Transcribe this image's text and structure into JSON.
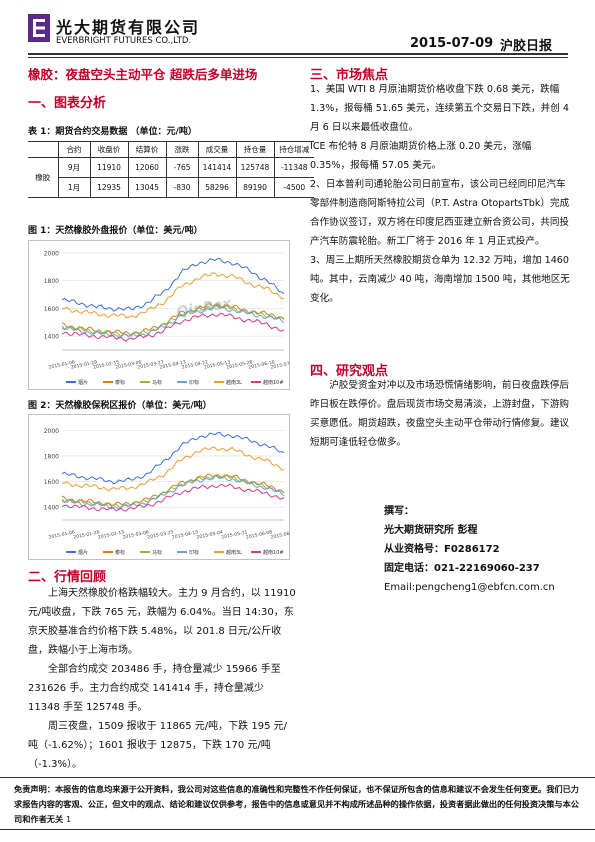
{
  "header": {
    "company_cn": "光大期货有限公司",
    "company_en": "EVERBRIGHT FUTURES CO.,LTD.",
    "date": "2015-07-09",
    "report_name": "沪胶日报"
  },
  "headline": "橡胶：夜盘空头主动平仓  超跌后多单进场",
  "sections": {
    "s1": "一、图表分析",
    "s2": "二、行情回顾",
    "s3": "三、市场焦点",
    "s4": "四、研究观点"
  },
  "table": {
    "caption": "表 1：期货合约交易数据  （单位：元/吨）",
    "headers": [
      "合约",
      "收盘价",
      "结算价",
      "涨跌",
      "成交量",
      "持仓量",
      "持仓增减"
    ],
    "product": "橡胶",
    "rows": [
      [
        "9月",
        "11910",
        "12060",
        "-765",
        "141414",
        "125748",
        "-11348"
      ],
      [
        "1月",
        "12935",
        "13045",
        "-830",
        "58296",
        "89190",
        "-4500"
      ]
    ]
  },
  "fig1": {
    "caption": "图 1：天然橡胶外盘报价（单位：美元/吨）",
    "watermark": "QinRex",
    "chart_data": {
      "type": "line",
      "yticks": [
        1400,
        1600,
        1800,
        2000
      ],
      "ylim": [
        1300,
        2050
      ],
      "xticks": [
        "2015-01-06",
        "2015-01-29",
        "2015-02-15",
        "2015-03-06",
        "2015-03-27",
        "2015-04-13",
        "2015-04-22",
        "2015-05-13",
        "2015-05-28",
        "2015-06-10",
        "2015-07-06"
      ],
      "series": [
        {
          "name": "烟片",
          "color": "#3b6fd6",
          "values": [
            1660,
            1640,
            1610,
            1600,
            1590,
            1640,
            1720,
            1860,
            1930,
            1950,
            1930,
            1870,
            1800,
            1700
          ]
        },
        {
          "name": "泰标",
          "color": "#e07b1a",
          "values": [
            1480,
            1460,
            1440,
            1430,
            1420,
            1440,
            1490,
            1570,
            1600,
            1630,
            1610,
            1580,
            1560,
            1530
          ]
        },
        {
          "name": "马标",
          "color": "#8fb83c",
          "values": [
            1470,
            1450,
            1430,
            1420,
            1410,
            1430,
            1480,
            1560,
            1590,
            1620,
            1600,
            1570,
            1550,
            1520
          ]
        },
        {
          "name": "印标",
          "color": "#6aa0d8",
          "values": [
            1460,
            1440,
            1420,
            1410,
            1400,
            1420,
            1470,
            1550,
            1580,
            1610,
            1590,
            1560,
            1540,
            1510
          ]
        },
        {
          "name": "越南3L",
          "color": "#ea9c2e",
          "values": [
            1600,
            1580,
            1560,
            1550,
            1540,
            1580,
            1650,
            1760,
            1820,
            1850,
            1830,
            1780,
            1740,
            1680
          ]
        },
        {
          "name": "越南10#",
          "color": "#d63a8a",
          "values": [
            1430,
            1410,
            1400,
            1390,
            1380,
            1400,
            1440,
            1510,
            1540,
            1560,
            1540,
            1510,
            1490,
            1430
          ]
        }
      ]
    }
  },
  "fig2": {
    "caption": "图 2：天然橡胶保税区报价（单位：美元/吨）",
    "chart_data": {
      "type": "line",
      "yticks": [
        1400,
        1600,
        1800,
        2000
      ],
      "ylim": [
        1300,
        2080
      ],
      "xticks": [
        "2015-01-06",
        "2015-01-26",
        "2015-02-13",
        "2015-03-06",
        "2015-03-25",
        "2015-04-15",
        "2015-05-04",
        "2015-05-21",
        "2015-06-08",
        "2015-06-24"
      ],
      "series": [
        {
          "name": "烟片",
          "color": "#3b6fd6",
          "values": [
            1660,
            1640,
            1620,
            1600,
            1610,
            1660,
            1760,
            1880,
            1950,
            1970,
            1960,
            1920,
            1880,
            1820
          ]
        },
        {
          "name": "泰标",
          "color": "#e07b1a",
          "values": [
            1470,
            1450,
            1440,
            1420,
            1430,
            1460,
            1520,
            1590,
            1630,
            1650,
            1640,
            1600,
            1570,
            1520
          ]
        },
        {
          "name": "马标",
          "color": "#8fb83c",
          "values": [
            1460,
            1440,
            1430,
            1410,
            1420,
            1450,
            1510,
            1580,
            1620,
            1640,
            1630,
            1590,
            1560,
            1510
          ]
        },
        {
          "name": "印标",
          "color": "#6aa0d8",
          "values": [
            1450,
            1430,
            1420,
            1400,
            1410,
            1440,
            1500,
            1570,
            1610,
            1630,
            1620,
            1580,
            1550,
            1500
          ]
        },
        {
          "name": "越南3L",
          "color": "#ea9c2e",
          "values": [
            1590,
            1570,
            1560,
            1540,
            1550,
            1590,
            1660,
            1770,
            1840,
            1860,
            1850,
            1800,
            1760,
            1700
          ]
        },
        {
          "name": "越南10#",
          "color": "#d63a8a",
          "values": [
            1420,
            1400,
            1390,
            1380,
            1390,
            1410,
            1460,
            1520,
            1550,
            1570,
            1560,
            1530,
            1510,
            1460
          ]
        }
      ]
    }
  },
  "review": [
    "上海天然橡胶价格跌幅较大。主力 9 月合约，以 11910 元/吨收盘，下跌 765 元，跌幅为 6.04%。当日 14:30，东京天胶基准合约价格下跌 5.48%，以 201.8 日元/公斤收盘，跌幅小于上海市场。",
    "全部合约成交 203486 手，持仓量减少 15966 手至 231626 手。主力合约成交 141414 手，持仓量减少 11348 手至 125748 手。",
    "周三夜盘，1509 报收于 11865 元/吨，下跌 195 元/吨（-1.62%）；1601 报收于 12875，下跌 170 元/吨（-1.3%）。"
  ],
  "focus": [
    "1、美国 WTI 8 月原油期货价格收盘下跌 0.68 美元，跌幅 1.3%，报每桶 51.65 美元，连续第五个交易日下跌，并创 4 月 6 日以来最低收盘位。",
    "ICE 布伦特 8 月原油期货价格上涨 0.20 美元，涨幅 0.35%，报每桶 57.05 美元。",
    "2、日本普利司通轮胎公司日前宣布，该公司已经同印尼汽车零部件制造商阿斯特拉公司（P.T. Astra OtopartsTbk）完成合作协议签订，双方将在印度尼西亚建立新合资公司，共同投产汽车防震轮胎。新工厂将于 2016 年 1 月正式投产。",
    "3、周三上期所天然橡胶期货仓单为 12.32 万吨，增加 1460 吨。其中，云南减少 40 吨，海南增加 1500 吨，其他地区无变化。"
  ],
  "view": "沪胶受资金对冲以及市场恐慌情绪影响，前日夜盘跌停后昨日板在跌停价。盘后现货市场交易清淡，上游封盘，下游购买意愿低。期货超跌，夜盘空头主动平仓带动行情修复。建议短期可逢低轻仓做多。",
  "author": {
    "label": "撰写：",
    "org": "光大期货研究所  彭程",
    "license": "从业资格号：F0286172",
    "phone": "固定电话：021-22169060-237",
    "email": "Email:pengcheng1@ebfcn.com.cn"
  },
  "disclaimer": "免责声明：本报告的信息均来源于公开资料，我公司对这些信息的准确性和完整性不作任何保证，也不保证所包含的信息和建议不会发生任何变更。我们已力求报告内容的客观、公正，但文中的观点、结论和建议仅供参考，报告中的信息或意见并不构成所述品种的操作依据，投资者据此做出的任何投资决策与本公司和作者无关",
  "page_number": "1"
}
